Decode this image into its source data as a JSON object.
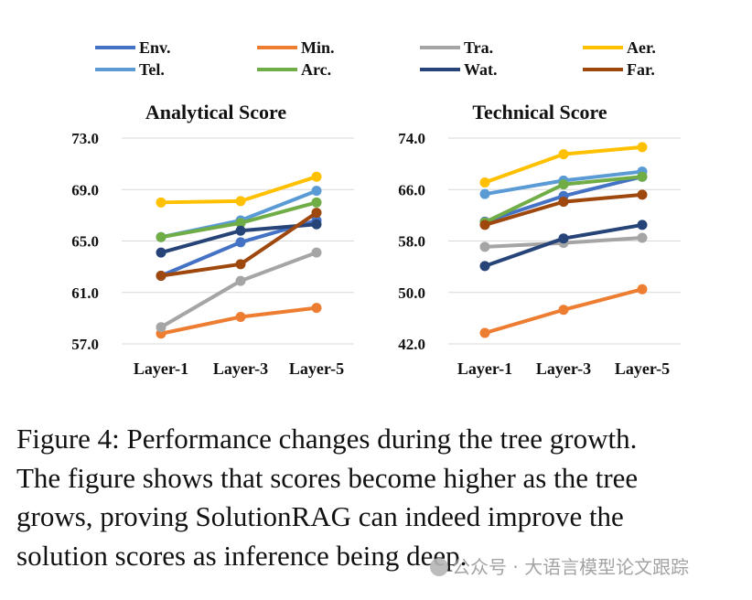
{
  "legend": [
    {
      "name": "Env.",
      "color": "#4472C4"
    },
    {
      "name": "Min.",
      "color": "#ED7D31"
    },
    {
      "name": "Tra.",
      "color": "#A5A5A5"
    },
    {
      "name": "Aer.",
      "color": "#FFC000"
    },
    {
      "name": "Tel.",
      "color": "#5B9BD5"
    },
    {
      "name": "Arc.",
      "color": "#70AD47"
    },
    {
      "name": "Wat.",
      "color": "#264478"
    },
    {
      "name": "Far.",
      "color": "#9E480E"
    }
  ],
  "chart_data": [
    {
      "type": "line",
      "title": "Analytical Score",
      "categories": [
        "Layer-1",
        "Layer-3",
        "Layer-5"
      ],
      "ylim": [
        57.0,
        73.0
      ],
      "yticks": [
        "73.0",
        "69.0",
        "65.0",
        "61.0",
        "57.0"
      ],
      "grid": true,
      "series": [
        {
          "name": "Env.",
          "values": [
            62.3,
            64.9,
            66.6
          ]
        },
        {
          "name": "Min.",
          "values": [
            57.8,
            59.1,
            59.8
          ]
        },
        {
          "name": "Tra.",
          "values": [
            58.3,
            61.9,
            64.1
          ]
        },
        {
          "name": "Aer.",
          "values": [
            68.0,
            68.1,
            70.0
          ]
        },
        {
          "name": "Tel.",
          "values": [
            65.3,
            66.6,
            68.9
          ]
        },
        {
          "name": "Arc.",
          "values": [
            65.3,
            66.4,
            68.0
          ]
        },
        {
          "name": "Wat.",
          "values": [
            64.1,
            65.8,
            66.3
          ]
        },
        {
          "name": "Far.",
          "values": [
            62.3,
            63.2,
            67.2
          ]
        }
      ]
    },
    {
      "type": "line",
      "title": "Technical Score",
      "categories": [
        "Layer-1",
        "Layer-3",
        "Layer-5"
      ],
      "ylim": [
        42.0,
        74.0
      ],
      "yticks": [
        "74.0",
        "66.0",
        "58.0",
        "50.0",
        "42.0"
      ],
      "grid": true,
      "series": [
        {
          "name": "Env.",
          "values": [
            61.0,
            65.0,
            68.0
          ]
        },
        {
          "name": "Min.",
          "values": [
            43.7,
            47.3,
            50.5
          ]
        },
        {
          "name": "Tra.",
          "values": [
            57.1,
            57.7,
            58.5
          ]
        },
        {
          "name": "Aer.",
          "values": [
            67.1,
            71.5,
            72.6
          ]
        },
        {
          "name": "Tel.",
          "values": [
            65.3,
            67.4,
            68.8
          ]
        },
        {
          "name": "Arc.",
          "values": [
            60.9,
            66.8,
            68.0
          ]
        },
        {
          "name": "Wat.",
          "values": [
            54.1,
            58.4,
            60.5
          ]
        },
        {
          "name": "Far.",
          "values": [
            60.5,
            64.1,
            65.2
          ]
        }
      ]
    }
  ],
  "caption": [
    "Figure 4: Performance changes during the tree growth.",
    "The figure shows that scores become higher as the tree",
    "grows, proving SolutionRAG can indeed improve the",
    "solution scores as inference being deep."
  ],
  "watermark": "公众号 · 大语言模型论文跟踪"
}
